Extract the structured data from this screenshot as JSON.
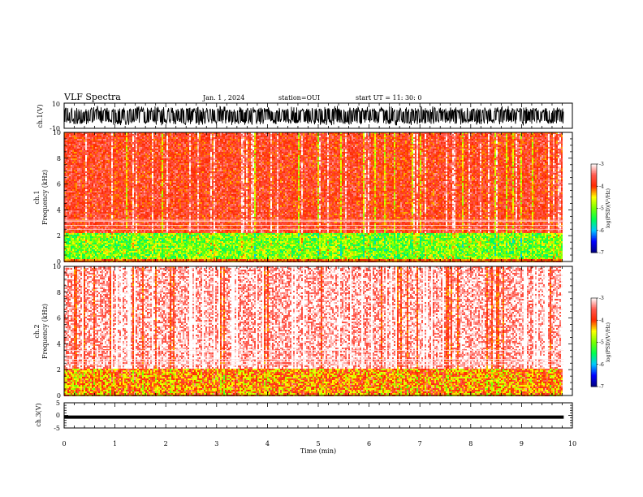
{
  "header": {
    "title": "VLF Spectra",
    "date": "Jan. 1 , 2024",
    "station": "station=OUI",
    "start": "start UT = 11: 30: 0"
  },
  "chart_data": [
    {
      "type": "line",
      "panel": "ch1-waveform",
      "ylabel": "ch.1(V)",
      "ylim": [
        -10,
        10
      ],
      "y_tick_labels": [
        "-10",
        "10"
      ],
      "xlim": [
        0,
        10
      ],
      "x_data_extent": [
        0,
        9.83
      ],
      "description_values": "dense oscillating voltage trace spanning roughly -8 to 8 V",
      "color": "#000000"
    },
    {
      "type": "heatmap",
      "panel": "ch1-spectrogram",
      "ylabel": "ch.1\nFrequency (kHz)",
      "ylabel_top": "ch.1",
      "ylabel_bottom": "Frequency (kHz)",
      "ylim": [
        0,
        10
      ],
      "y_ticks": [
        0,
        2,
        4,
        6,
        8,
        10
      ],
      "xlim": [
        0,
        10
      ],
      "x_data_extent": [
        0,
        9.83
      ],
      "colorbar": {
        "label": "log(PSD)(V²/Hz)",
        "range": [
          -7,
          -3
        ],
        "ticks": [
          "-3",
          "-4",
          "-5",
          "-6",
          "-7"
        ],
        "colors": [
          "#000080",
          "#0000ff",
          "#00c8ff",
          "#00ff00",
          "#ffff00",
          "#ff0000",
          "#ffffff"
        ]
      },
      "features": {
        "low_band_khz": [
          0.3,
          2.3
        ],
        "low_band_level": -5,
        "upper_level": -3.8,
        "narrow_lines_khz": [
          2.5,
          2.8,
          3.1,
          3.2
        ]
      }
    },
    {
      "type": "heatmap",
      "panel": "ch2-spectrogram",
      "ylabel_top": "ch.2",
      "ylabel_bottom": "Frequency (kHz)",
      "ylim": [
        0,
        10
      ],
      "y_ticks": [
        0,
        2,
        4,
        6,
        8,
        10
      ],
      "xlim": [
        0,
        10
      ],
      "x_data_extent": [
        0,
        9.83
      ],
      "colorbar": {
        "label": "log(PSD)(V²/Hz)",
        "range": [
          -7,
          -3
        ],
        "ticks": [
          "-3",
          "-4",
          "-5",
          "-6",
          "-7"
        ],
        "colors": [
          "#000080",
          "#0000ff",
          "#00c8ff",
          "#00ff00",
          "#ffff00",
          "#ff0000",
          "#ffffff"
        ]
      },
      "features": {
        "low_band_khz": [
          0,
          2.2
        ],
        "low_band_level": -4.2,
        "upper_level": -3.2,
        "narrow_lines_khz": [
          2.4,
          2.6,
          2.8,
          3.5
        ]
      }
    },
    {
      "type": "line",
      "panel": "ch3-waveform",
      "ylabel": "ch.3(V)",
      "ylim": [
        -5,
        5
      ],
      "y_tick_labels": [
        "-5",
        "0",
        "5"
      ],
      "xlim": [
        0,
        10
      ],
      "x_data_extent": [
        0,
        9.83
      ],
      "constant_value": -0.7,
      "color": "#000000"
    }
  ],
  "xaxis": {
    "label": "Time (min)",
    "ticks": [
      "0",
      "1",
      "2",
      "3",
      "4",
      "5",
      "6",
      "7",
      "8",
      "9",
      "10"
    ]
  }
}
